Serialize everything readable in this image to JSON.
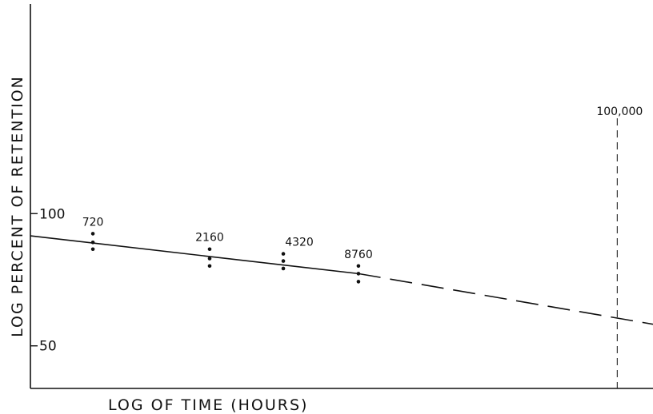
{
  "chart_data": {
    "type": "line",
    "title": "",
    "xlabel": "LOG OF TIME (HOURS)",
    "ylabel": "LOG PERCENT OF RETENTION",
    "x_scale": "log",
    "y_scale": "log",
    "xlim": [
      400,
      140000
    ],
    "ylim": [
      40,
      300
    ],
    "y_ticks": [
      {
        "value": 100,
        "label": "100"
      },
      {
        "value": 50,
        "label": "50"
      }
    ],
    "grid": false,
    "legend": "none",
    "points": [
      {
        "x": 720,
        "label": "720",
        "spread": [
          90,
          86,
          83
        ]
      },
      {
        "x": 2160,
        "label": "2160",
        "spread": [
          83,
          79,
          76
        ]
      },
      {
        "x": 4320,
        "label": "4320",
        "spread": [
          81,
          78,
          75
        ]
      },
      {
        "x": 8760,
        "label": "8760",
        "spread": [
          76,
          73,
          70
        ]
      }
    ],
    "fit_line": {
      "solid": [
        [
          400,
          89
        ],
        [
          8760,
          73
        ]
      ],
      "dashed": [
        [
          8760,
          73
        ],
        [
          140000,
          56
        ]
      ]
    },
    "markers": [
      {
        "x": 100000,
        "label": "100,000",
        "style": "dashed-vertical"
      }
    ],
    "colors": {
      "ink": "#111111",
      "background": "#ffffff"
    }
  }
}
